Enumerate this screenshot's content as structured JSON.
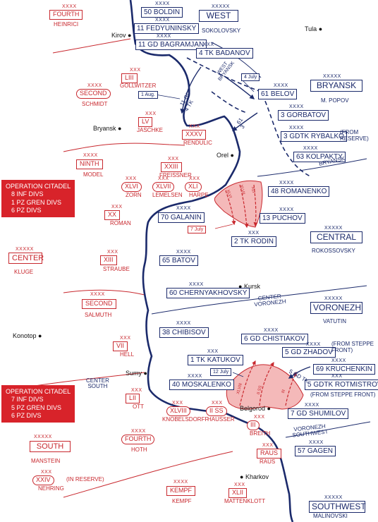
{
  "colors": {
    "soviet": "#1b2a6b",
    "german": "#c8282e",
    "attack_fill": "#f4b9b9",
    "op_box": "#d8232a"
  },
  "cities": [
    "Tula",
    "Kirov",
    "Bryansk",
    "Orel",
    "Kursk",
    "Konotop",
    "Sumy",
    "Belgorod",
    "Kharkov"
  ],
  "soviet_fronts": [
    {
      "name": "WEST",
      "commander": "SOKOLOVSKY",
      "echelon": "XXXXX"
    },
    {
      "name": "BRYANSK",
      "commander": "M. POPOV",
      "echelon": "XXXXX"
    },
    {
      "name": "CENTRAL",
      "commander": "ROKOSSOVSKY",
      "echelon": "XXXXX"
    },
    {
      "name": "VORONEZH",
      "commander": "VATUTIN",
      "echelon": "XXXXX"
    },
    {
      "name": "SOUTHWEST",
      "commander": "MALINOVSKI",
      "echelon": "XXXXX"
    }
  ],
  "soviet_armies": [
    "50 BOLDIN",
    "11 FEDYUNINSKY",
    "11 GD BAGRAMJAN",
    "4 TK BADANOV",
    "61 BELOV",
    "3 GORBATOV",
    "3 GDTK RYBALKO",
    "63 KOLPAKTY",
    "48 ROMANENKO",
    "70 GALANIN",
    "13 PUCHOV",
    "2 TK RODIN",
    "65 BATOV",
    "60 CHERNYAKHOVSKY",
    "38 CHIBISOV",
    "6 GD CHISTIAKOV",
    "1 TK KATUKOV",
    "5 GD ZHADOV",
    "69 KRUCHENKIN",
    "40 MOSKALENKO",
    "5 GDTK ROTMISTROV",
    "7 GD SHUMILOV",
    "57 GAGEN"
  ],
  "soviet_notes": {
    "rybalko": "(FROM RESERVE)",
    "zhadov": "(FROM STEPPE FRONT)",
    "rotmistrov": "(FROM STEPPE FRONT)"
  },
  "echelons": {
    "front": "XXXXX",
    "army": "XXXX",
    "corps": "XXX"
  },
  "german_groups": [
    {
      "name": "CENTER",
      "commander": "KLUGE"
    },
    {
      "name": "SOUTH",
      "commander": "MANSTEIN"
    }
  ],
  "german_armies": [
    {
      "name": "FOURTH",
      "commander": "HEINRICI"
    },
    {
      "name": "SECOND",
      "commander": "SCHMIDT"
    },
    {
      "name": "NINTH",
      "commander": "MODEL"
    },
    {
      "name": "SECOND",
      "commander": "SALMUTH"
    },
    {
      "name": "FOURTH",
      "commander": "HOTH"
    },
    {
      "name": "KEMPF",
      "commander": "KEMPF"
    }
  ],
  "german_corps": [
    {
      "num": "LIII",
      "commander": "GOLLWITZER"
    },
    {
      "num": "LV",
      "commander": "JASCHKE"
    },
    {
      "num": "XXXV",
      "commander": "RENDULIC"
    },
    {
      "num": "XXIII",
      "commander": "FREISSNER"
    },
    {
      "num": "XLVI",
      "commander": "ZORN"
    },
    {
      "num": "XLVII",
      "commander": "LEMELSEN"
    },
    {
      "num": "XLI",
      "commander": "HARPE"
    },
    {
      "num": "XX",
      "commander": "ROMAN"
    },
    {
      "num": "XIII",
      "commander": "STRAUBE"
    },
    {
      "num": "VII",
      "commander": "HELL"
    },
    {
      "num": "LII",
      "commander": "OTT"
    },
    {
      "num": "XLVIII",
      "commander": "KNOBELSDORFF"
    },
    {
      "num": "II SS",
      "commander": "HAUSSER"
    },
    {
      "num": "III",
      "commander": "BREITH"
    },
    {
      "num": "RAUS",
      "commander": "RAUS"
    },
    {
      "num": "XXIV",
      "commander": "NEHRING"
    },
    {
      "num": "XLII",
      "commander": "MATTENKLOTT"
    }
  ],
  "in_reserve": "(IN RESERVE)",
  "boundaries": [
    {
      "upper": "WEST",
      "lower": "BRYANSK"
    },
    {
      "upper": "BRYANSK",
      "lower": "CENTER"
    },
    {
      "upper": "CENTER",
      "lower": "VORONEZH"
    },
    {
      "upper": "VORONEZH",
      "lower": "SOUTHWEST"
    },
    {
      "upper": "CENTER",
      "lower": "SOUTH"
    }
  ],
  "operation_north": {
    "title": "OPERATION CITADEL",
    "lines": [
      "8 INF DIVS",
      "1 PZ GREN DIVS",
      "6 PZ DIVS"
    ]
  },
  "operation_south": {
    "title": "OPERATION CITADEL",
    "lines": [
      "7 INF DIVS",
      "5 PZ GREN DIVS",
      "6 PZ DIVS"
    ]
  },
  "dates": [
    "4 July",
    "1 Aug.",
    "7 July",
    "12 July"
  ],
  "arrow_labels": [
    "11 GD",
    "4 TK",
    "61",
    "3",
    "WEST",
    "BRYANSK",
    "5 GD TK",
    "XLVI",
    "XLVII",
    "XLI",
    "XLVIII",
    "II SS",
    "III"
  ]
}
